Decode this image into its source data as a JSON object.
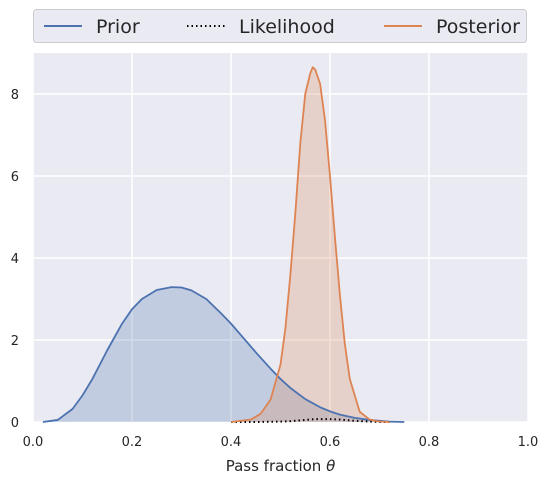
{
  "chart_data": {
    "type": "area",
    "xlabel_text": "Pass fraction ",
    "xlabel_symbol": "θ",
    "xlim": [
      0.0,
      1.0
    ],
    "ylim": [
      0,
      9.0
    ],
    "xticks": [
      0.0,
      0.2,
      0.4,
      0.6,
      0.8,
      1.0
    ],
    "xtick_labels": [
      "0.0",
      "0.2",
      "0.4",
      "0.6",
      "0.8",
      "1.0"
    ],
    "yticks": [
      0,
      2,
      4,
      6,
      8
    ],
    "ytick_labels": [
      "0",
      "2",
      "4",
      "6",
      "8"
    ],
    "grid": true,
    "legend_position": "top-center",
    "series": [
      {
        "name": "Prior",
        "color": "#4c72b0",
        "style": "solid",
        "filled": true,
        "x": [
          0.02,
          0.05,
          0.08,
          0.1,
          0.12,
          0.15,
          0.18,
          0.2,
          0.22,
          0.25,
          0.28,
          0.3,
          0.32,
          0.35,
          0.38,
          0.4,
          0.42,
          0.45,
          0.48,
          0.5,
          0.52,
          0.55,
          0.58,
          0.6,
          0.62,
          0.65,
          0.68,
          0.7,
          0.72,
          0.75
        ],
        "values": [
          0.0,
          0.05,
          0.32,
          0.65,
          1.05,
          1.75,
          2.4,
          2.75,
          3.0,
          3.22,
          3.29,
          3.28,
          3.21,
          3.0,
          2.65,
          2.4,
          2.12,
          1.7,
          1.3,
          1.05,
          0.83,
          0.56,
          0.36,
          0.26,
          0.18,
          0.1,
          0.05,
          0.03,
          0.01,
          0.0
        ]
      },
      {
        "name": "Likelihood",
        "color": "#000000",
        "style": "dotted",
        "filled": false,
        "x": [
          0.4,
          0.45,
          0.5,
          0.52,
          0.55,
          0.57,
          0.6,
          0.62,
          0.65,
          0.68,
          0.7,
          0.72
        ],
        "values": [
          0.0,
          0.0,
          0.01,
          0.02,
          0.05,
          0.07,
          0.07,
          0.06,
          0.03,
          0.01,
          0.0,
          0.0
        ]
      },
      {
        "name": "Posterior",
        "color": "#dd8452",
        "style": "solid",
        "filled": true,
        "x": [
          0.4,
          0.44,
          0.46,
          0.48,
          0.5,
          0.51,
          0.52,
          0.53,
          0.54,
          0.55,
          0.56,
          0.565,
          0.57,
          0.58,
          0.59,
          0.6,
          0.61,
          0.62,
          0.63,
          0.64,
          0.66,
          0.68,
          0.7,
          0.72
        ],
        "values": [
          0.0,
          0.06,
          0.2,
          0.55,
          1.4,
          2.3,
          3.6,
          5.1,
          6.8,
          8.0,
          8.5,
          8.65,
          8.6,
          8.25,
          7.35,
          6.0,
          4.5,
          3.1,
          1.9,
          1.05,
          0.25,
          0.06,
          0.01,
          0.0
        ]
      }
    ]
  }
}
